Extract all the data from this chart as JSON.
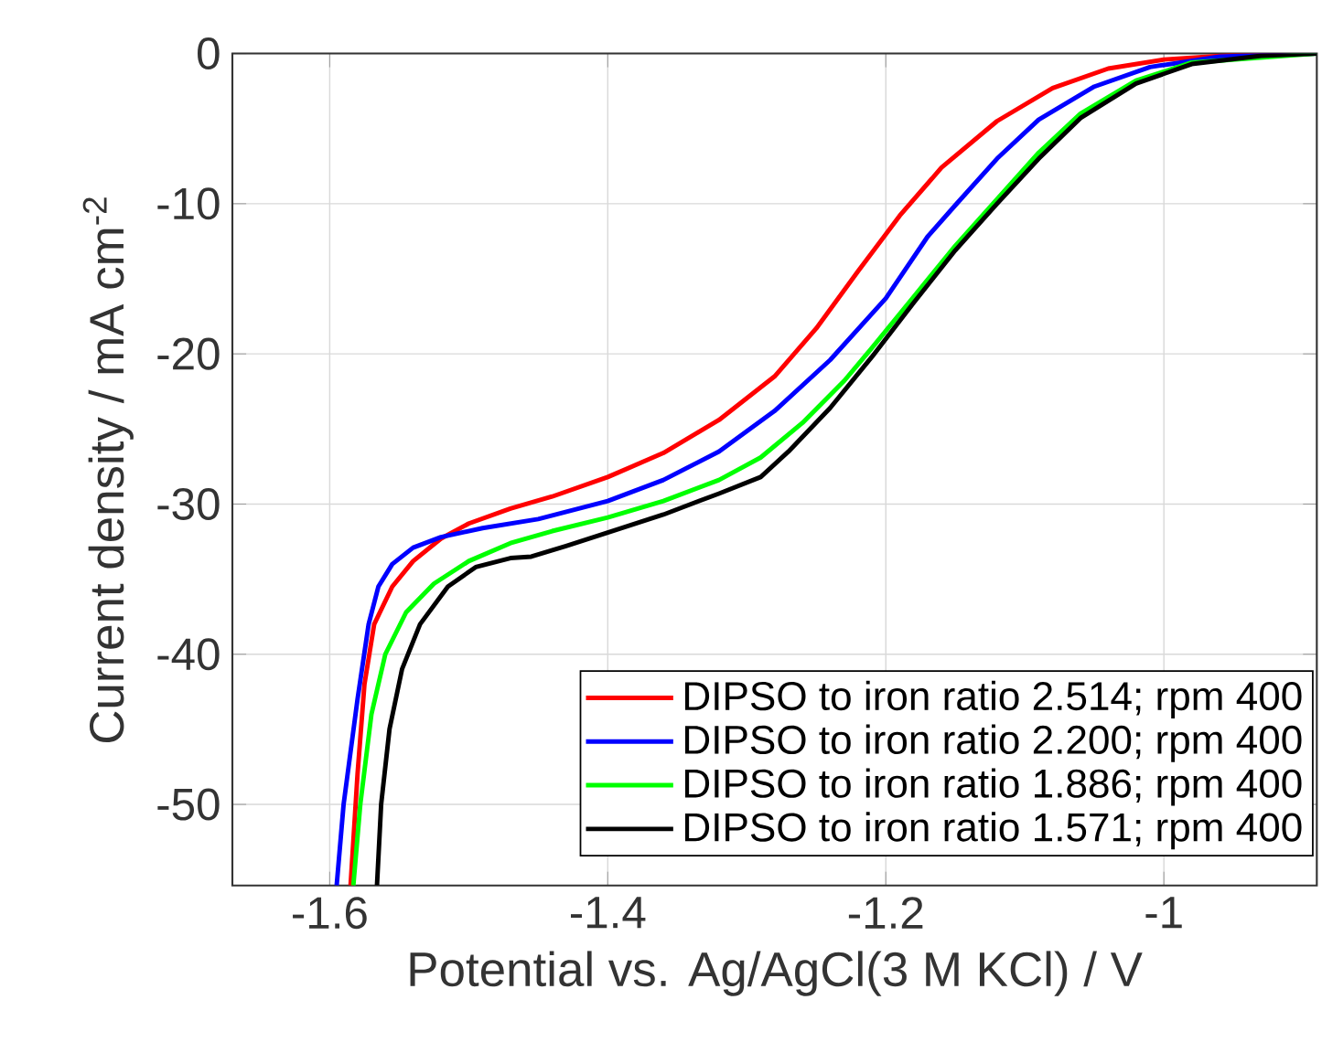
{
  "chart_data": {
    "type": "line",
    "xlabel": "Potential vs. Ag/AgCl(3 M KCl) / V",
    "ylabel": "Current density / mA cm$^{-2}$",
    "xlim": [
      -1.67,
      -0.89
    ],
    "ylim": [
      -55.4,
      0
    ],
    "xticks": [
      -1.6,
      -1.4,
      -1.2,
      -1
    ],
    "yticks": [
      -50,
      -40,
      -30,
      -20,
      -10,
      0
    ],
    "grid": true,
    "legend": "bottom right",
    "line_style": "solid",
    "marker": "none",
    "series": [
      {
        "name": "DIPSO to iron ratio 2.514; rpm 400",
        "color": "#ff0000",
        "x": [
          -1.585,
          -1.58,
          -1.575,
          -1.568,
          -1.555,
          -1.54,
          -1.52,
          -1.5,
          -1.47,
          -1.44,
          -1.4,
          -1.36,
          -1.32,
          -1.28,
          -1.25,
          -1.22,
          -1.19,
          -1.16,
          -1.12,
          -1.08,
          -1.04,
          -1.0,
          -0.95,
          -0.89
        ],
        "values": [
          -55.4,
          -48,
          -42,
          -38,
          -35.5,
          -33.8,
          -32.3,
          -31.3,
          -30.3,
          -29.5,
          -28.2,
          -26.6,
          -24.4,
          -21.5,
          -18.3,
          -14.5,
          -10.8,
          -7.6,
          -4.5,
          -2.3,
          -1.0,
          -0.4,
          -0.1,
          0
        ]
      },
      {
        "name": "DIPSO to iron ratio 2.200; rpm 400",
        "color": "#0000ff",
        "x": [
          -1.595,
          -1.59,
          -1.58,
          -1.572,
          -1.565,
          -1.555,
          -1.54,
          -1.52,
          -1.49,
          -1.45,
          -1.4,
          -1.36,
          -1.32,
          -1.28,
          -1.24,
          -1.2,
          -1.17,
          -1.15,
          -1.12,
          -1.09,
          -1.05,
          -1.01,
          -0.96,
          -0.89
        ],
        "values": [
          -55.4,
          -50,
          -43,
          -38,
          -35.5,
          -34,
          -32.9,
          -32.2,
          -31.6,
          -31.0,
          -29.8,
          -28.4,
          -26.5,
          -23.8,
          -20.4,
          -16.3,
          -12.2,
          -10.1,
          -7.0,
          -4.4,
          -2.2,
          -0.9,
          -0.2,
          0
        ]
      },
      {
        "name": "DIPSO to iron ratio 1.886; rpm 400",
        "color": "#00ff00",
        "x": [
          -1.583,
          -1.578,
          -1.57,
          -1.56,
          -1.545,
          -1.525,
          -1.5,
          -1.47,
          -1.44,
          -1.4,
          -1.36,
          -1.32,
          -1.29,
          -1.26,
          -1.23,
          -1.21,
          -1.18,
          -1.15,
          -1.12,
          -1.09,
          -1.06,
          -1.02,
          -0.98,
          -0.89
        ],
        "values": [
          -55.4,
          -50,
          -44,
          -40,
          -37.2,
          -35.3,
          -33.8,
          -32.6,
          -31.8,
          -30.9,
          -29.8,
          -28.4,
          -26.9,
          -24.6,
          -21.8,
          -19.6,
          -16.2,
          -12.8,
          -9.7,
          -6.6,
          -4.0,
          -1.8,
          -0.6,
          0
        ]
      },
      {
        "name": "DIPSO to iron ratio 1.571; rpm 400",
        "color": "#000000",
        "x": [
          -1.566,
          -1.563,
          -1.557,
          -1.548,
          -1.535,
          -1.515,
          -1.495,
          -1.47,
          -1.455,
          -1.43,
          -1.4,
          -1.36,
          -1.32,
          -1.29,
          -1.27,
          -1.24,
          -1.21,
          -1.18,
          -1.15,
          -1.12,
          -1.09,
          -1.06,
          -1.02,
          -0.98,
          -0.93,
          -0.89
        ],
        "values": [
          -55.4,
          -50,
          -45,
          -41,
          -38,
          -35.5,
          -34.2,
          -33.6,
          -33.5,
          -32.8,
          -31.9,
          -30.7,
          -29.3,
          -28.2,
          -26.5,
          -23.6,
          -20.2,
          -16.6,
          -13.1,
          -10.0,
          -7.0,
          -4.3,
          -2.0,
          -0.7,
          -0.15,
          0
        ]
      }
    ]
  }
}
